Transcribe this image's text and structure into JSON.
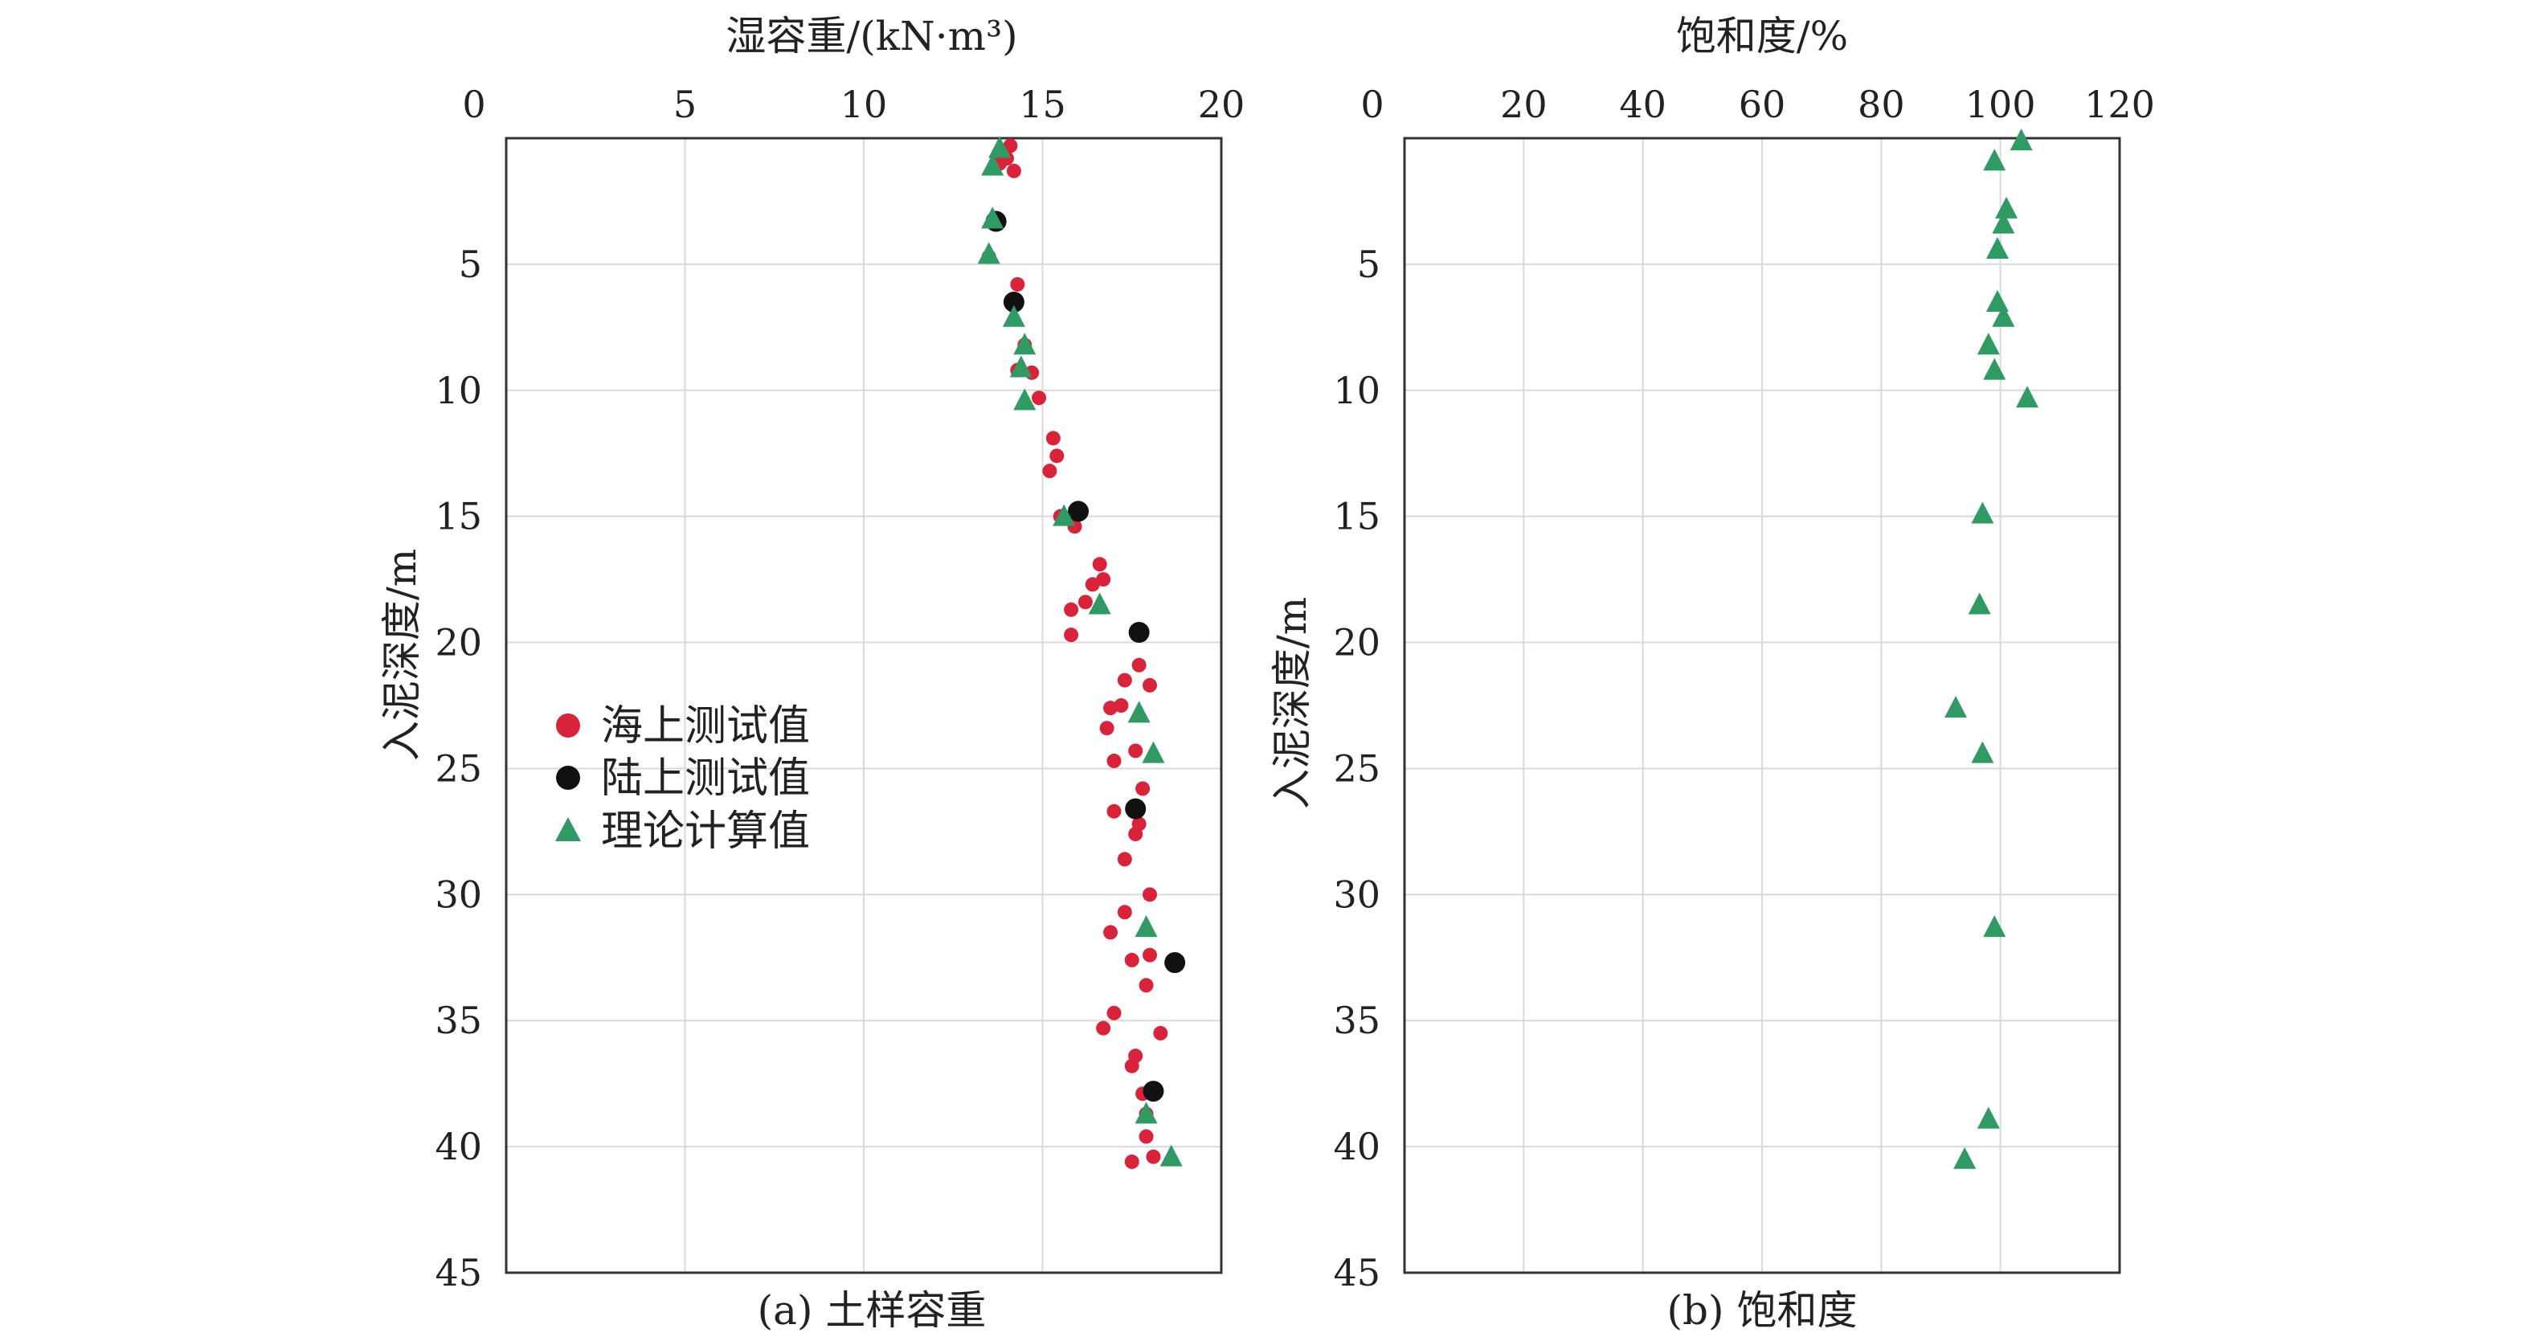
{
  "colors": {
    "sea": "#d9233a",
    "land": "#111111",
    "theory": "#2f9a63",
    "axis": "#333333",
    "grid": "#d9d9d9"
  },
  "panels": [
    {
      "caption": "(a) 土样容重"
    },
    {
      "caption": "(b) 饱和度"
    }
  ],
  "legend": {
    "items": [
      {
        "label": "海上测试值",
        "marker": "circle",
        "color": "#d9233a"
      },
      {
        "label": "陆上测试值",
        "marker": "circle",
        "color": "#111111"
      },
      {
        "label": "理论计算值",
        "marker": "triangle",
        "color": "#2f9a63"
      }
    ]
  },
  "chart_data": [
    {
      "type": "scatter",
      "xlabel": "湿容重/(kN·m³)",
      "ylabel": "入泥深度/m",
      "xlim": [
        0,
        20
      ],
      "ylim": [
        0,
        45
      ],
      "y_inverted": true,
      "x_axis_position": "top",
      "xticks": [
        "0",
        "5",
        "10",
        "15",
        "20"
      ],
      "yticks": [
        "5",
        "10",
        "15",
        "20",
        "25",
        "30",
        "35",
        "40",
        "45"
      ],
      "grid": true,
      "legend_position": "left-middle",
      "series": [
        {
          "name": "海上测试值",
          "marker": "circle",
          "points": [
            [
              14.1,
              0.3
            ],
            [
              14.0,
              0.8
            ],
            [
              14.2,
              1.3
            ],
            [
              13.8,
              1.0
            ],
            [
              13.7,
              3.4
            ],
            [
              13.5,
              4.7
            ],
            [
              14.3,
              5.8
            ],
            [
              14.2,
              6.6
            ],
            [
              14.5,
              8.2
            ],
            [
              14.7,
              9.3
            ],
            [
              14.3,
              9.2
            ],
            [
              14.9,
              10.3
            ],
            [
              15.3,
              11.9
            ],
            [
              15.4,
              12.6
            ],
            [
              15.2,
              13.2
            ],
            [
              15.5,
              15.0
            ],
            [
              15.9,
              15.4
            ],
            [
              16.6,
              16.9
            ],
            [
              16.4,
              17.7
            ],
            [
              16.7,
              17.5
            ],
            [
              16.2,
              18.4
            ],
            [
              15.8,
              18.7
            ],
            [
              15.8,
              19.7
            ],
            [
              17.7,
              20.9
            ],
            [
              17.3,
              21.5
            ],
            [
              18.0,
              21.7
            ],
            [
              17.2,
              22.5
            ],
            [
              16.9,
              22.6
            ],
            [
              16.8,
              23.4
            ],
            [
              17.6,
              24.3
            ],
            [
              17.0,
              24.7
            ],
            [
              17.8,
              25.8
            ],
            [
              17.0,
              26.7
            ],
            [
              17.7,
              27.2
            ],
            [
              17.6,
              27.6
            ],
            [
              17.3,
              28.6
            ],
            [
              18.0,
              30.0
            ],
            [
              17.3,
              30.7
            ],
            [
              16.9,
              31.5
            ],
            [
              18.0,
              32.4
            ],
            [
              17.5,
              32.6
            ],
            [
              17.9,
              33.6
            ],
            [
              17.0,
              34.7
            ],
            [
              18.3,
              35.5
            ],
            [
              16.7,
              35.3
            ],
            [
              17.6,
              36.4
            ],
            [
              17.5,
              36.8
            ],
            [
              17.8,
              37.9
            ],
            [
              17.9,
              38.7
            ],
            [
              17.9,
              39.6
            ],
            [
              18.1,
              40.4
            ],
            [
              17.5,
              40.6
            ]
          ]
        },
        {
          "name": "陆上测试值",
          "marker": "circle",
          "points": [
            [
              13.7,
              3.3
            ],
            [
              14.2,
              6.5
            ],
            [
              16.0,
              14.8
            ],
            [
              17.7,
              19.6
            ],
            [
              17.6,
              26.6
            ],
            [
              18.7,
              32.7
            ],
            [
              18.1,
              37.8
            ]
          ]
        },
        {
          "name": "理论计算值",
          "marker": "triangle",
          "points": [
            [
              13.8,
              0.4
            ],
            [
              13.6,
              1.1
            ],
            [
              13.6,
              3.2
            ],
            [
              13.5,
              4.6
            ],
            [
              14.2,
              7.1
            ],
            [
              14.5,
              8.2
            ],
            [
              14.4,
              9.1
            ],
            [
              14.5,
              10.4
            ],
            [
              15.6,
              15.0
            ],
            [
              16.6,
              18.5
            ],
            [
              17.7,
              22.8
            ],
            [
              18.1,
              24.4
            ],
            [
              17.9,
              31.3
            ],
            [
              17.9,
              38.7
            ],
            [
              18.6,
              40.4
            ]
          ]
        }
      ]
    },
    {
      "type": "scatter",
      "xlabel": "饱和度/%",
      "ylabel": "入泥深度/m",
      "xlim": [
        0,
        120
      ],
      "ylim": [
        0,
        45
      ],
      "y_inverted": true,
      "x_axis_position": "top",
      "xticks": [
        "0",
        "20",
        "40",
        "60",
        "80",
        "100",
        "120"
      ],
      "yticks": [
        "5",
        "10",
        "15",
        "20",
        "25",
        "30",
        "35",
        "40",
        "45"
      ],
      "grid": true,
      "series": [
        {
          "name": "理论计算值",
          "marker": "triangle",
          "points": [
            [
              103.5,
              0.1
            ],
            [
              99.0,
              0.9
            ],
            [
              101.0,
              2.8
            ],
            [
              100.5,
              3.4
            ],
            [
              99.5,
              4.4
            ],
            [
              99.5,
              6.5
            ],
            [
              100.5,
              7.1
            ],
            [
              98.0,
              8.2
            ],
            [
              99.0,
              9.2
            ],
            [
              104.5,
              10.3
            ],
            [
              97.0,
              14.9
            ],
            [
              96.5,
              18.5
            ],
            [
              92.5,
              22.6
            ],
            [
              97.0,
              24.4
            ],
            [
              99.0,
              31.3
            ],
            [
              98.0,
              38.9
            ],
            [
              94.0,
              40.5
            ]
          ]
        }
      ]
    }
  ]
}
